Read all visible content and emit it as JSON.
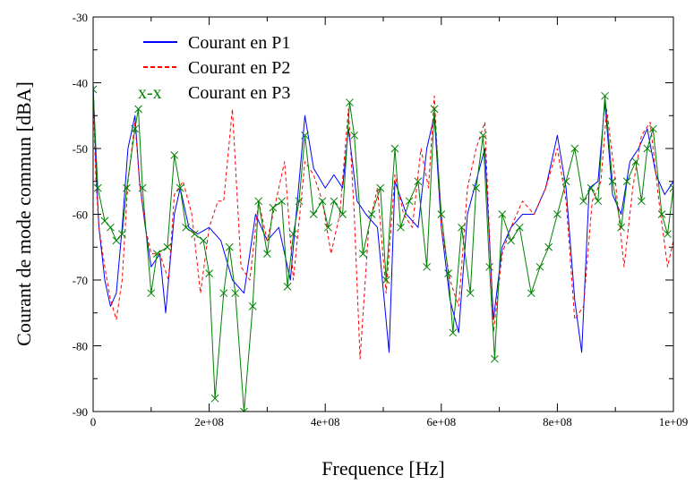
{
  "chart_data": {
    "type": "line",
    "title": "",
    "xlabel": "Frequence [Hz]",
    "ylabel": "Courant de mode commun [dBA]",
    "xlim": [
      0,
      1000000000
    ],
    "ylim": [
      -90,
      -30
    ],
    "x_ticks": [
      0,
      200000000,
      400000000,
      600000000,
      800000000,
      1000000000
    ],
    "x_tick_labels": [
      "0",
      "2e+08",
      "4e+08",
      "6e+08",
      "8e+08",
      "1e+09"
    ],
    "y_ticks": [
      -90,
      -80,
      -70,
      -60,
      -50,
      -40,
      -30
    ],
    "y_tick_labels": [
      "-90",
      "-80",
      "-70",
      "-60",
      "-50",
      "-40",
      "-30"
    ],
    "grid": false,
    "legend_position": "top-left",
    "series": [
      {
        "name": "Courant en P1",
        "legend_symbol": "",
        "color": "#0000ff",
        "style": "solid",
        "marker": "none",
        "x": [
          0,
          5000000,
          10000000,
          20000000,
          30000000,
          40000000,
          50000000,
          60000000,
          72000000,
          80000000,
          90000000,
          100000000,
          115000000,
          125000000,
          140000000,
          150000000,
          165000000,
          180000000,
          200000000,
          220000000,
          240000000,
          260000000,
          280000000,
          300000000,
          320000000,
          340000000,
          365000000,
          380000000,
          400000000,
          415000000,
          430000000,
          440000000,
          455000000,
          470000000,
          490000000,
          510000000,
          520000000,
          540000000,
          560000000,
          575000000,
          588000000,
          600000000,
          615000000,
          630000000,
          645000000,
          660000000,
          675000000,
          690000000,
          705000000,
          720000000,
          740000000,
          760000000,
          780000000,
          800000000,
          815000000,
          830000000,
          842000000,
          855000000,
          870000000,
          882000000,
          895000000,
          910000000,
          925000000,
          940000000,
          955000000,
          970000000,
          985000000,
          1000000000
        ],
        "y": [
          -40,
          -53,
          -62,
          -70,
          -74,
          -72,
          -62,
          -50,
          -45,
          -55,
          -62,
          -68,
          -66,
          -75,
          -60,
          -56,
          -62,
          -63,
          -62,
          -64,
          -70,
          -72,
          -60,
          -64,
          -62,
          -70,
          -45,
          -53,
          -56,
          -54,
          -56,
          -47,
          -58,
          -60,
          -62,
          -81,
          -55,
          -60,
          -62,
          -50,
          -45,
          -62,
          -73,
          -78,
          -60,
          -55,
          -50,
          -76,
          -65,
          -62,
          -60,
          -60,
          -56,
          -48,
          -56,
          -73,
          -81,
          -56,
          -55,
          -43,
          -57,
          -60,
          -52,
          -50,
          -47,
          -54,
          -57,
          -55
        ]
      },
      {
        "name": "Courant en P2",
        "legend_symbol": "",
        "color": "#ff0000",
        "style": "dashed",
        "marker": "none",
        "x": [
          0,
          5000000,
          10000000,
          20000000,
          30000000,
          40000000,
          50000000,
          60000000,
          72000000,
          80000000,
          90000000,
          100000000,
          115000000,
          130000000,
          140000000,
          155000000,
          170000000,
          185000000,
          200000000,
          215000000,
          225000000,
          240000000,
          255000000,
          270000000,
          285000000,
          300000000,
          315000000,
          330000000,
          345000000,
          365000000,
          380000000,
          395000000,
          410000000,
          425000000,
          440000000,
          450000000,
          460000000,
          475000000,
          490000000,
          505000000,
          520000000,
          535000000,
          550000000,
          565000000,
          578000000,
          588000000,
          600000000,
          615000000,
          630000000,
          645000000,
          660000000,
          675000000,
          690000000,
          705000000,
          720000000,
          740000000,
          760000000,
          780000000,
          800000000,
          815000000,
          830000000,
          845000000,
          860000000,
          875000000,
          885000000,
          900000000,
          915000000,
          930000000,
          945000000,
          960000000,
          975000000,
          990000000,
          1000000000
        ],
        "y": [
          -42,
          -55,
          -62,
          -68,
          -73,
          -76,
          -70,
          -55,
          -46,
          -55,
          -62,
          -66,
          -66,
          -70,
          -57,
          -55,
          -60,
          -72,
          -62,
          -58,
          -58,
          -44,
          -68,
          -70,
          -58,
          -64,
          -58,
          -52,
          -70,
          -52,
          -54,
          -58,
          -66,
          -60,
          -44,
          -60,
          -82,
          -62,
          -56,
          -72,
          -54,
          -60,
          -62,
          -50,
          -56,
          -42,
          -62,
          -70,
          -74,
          -56,
          -50,
          -46,
          -78,
          -66,
          -62,
          -58,
          -60,
          -56,
          -50,
          -58,
          -76,
          -74,
          -58,
          -55,
          -44,
          -55,
          -68,
          -56,
          -48,
          -46,
          -58,
          -68,
          -64
        ]
      },
      {
        "name": "Courant en P3",
        "legend_symbol": "x-x",
        "color": "#008000",
        "style": "solid",
        "marker": "x",
        "x": [
          0,
          8000000,
          20000000,
          30000000,
          40000000,
          50000000,
          58000000,
          72000000,
          78000000,
          85000000,
          100000000,
          110000000,
          128000000,
          140000000,
          150000000,
          160000000,
          175000000,
          190000000,
          200000000,
          210000000,
          225000000,
          235000000,
          245000000,
          260000000,
          275000000,
          285000000,
          300000000,
          310000000,
          325000000,
          335000000,
          345000000,
          355000000,
          365000000,
          380000000,
          395000000,
          405000000,
          415000000,
          430000000,
          442000000,
          450000000,
          465000000,
          480000000,
          495000000,
          505000000,
          520000000,
          530000000,
          545000000,
          560000000,
          575000000,
          588000000,
          600000000,
          612000000,
          620000000,
          635000000,
          650000000,
          660000000,
          672000000,
          683000000,
          692000000,
          705000000,
          720000000,
          735000000,
          755000000,
          770000000,
          785000000,
          800000000,
          815000000,
          830000000,
          845000000,
          858000000,
          870000000,
          882000000,
          895000000,
          910000000,
          920000000,
          935000000,
          945000000,
          955000000,
          965000000,
          980000000,
          990000000,
          1000000000
        ],
        "y": [
          -41,
          -56,
          -61,
          -62,
          -64,
          -63,
          -56,
          -47,
          -44,
          -56,
          -72,
          -66,
          -65,
          -51,
          -56,
          -62,
          -63,
          -64,
          -69,
          -88,
          -72,
          -65,
          -72,
          -90,
          -74,
          -58,
          -66,
          -59,
          -58,
          -71,
          -63,
          -58,
          -48,
          -60,
          -58,
          -62,
          -58,
          -60,
          -43,
          -48,
          -66,
          -60,
          -56,
          -70,
          -50,
          -62,
          -58,
          -55,
          -68,
          -44,
          -60,
          -69,
          -78,
          -62,
          -72,
          -56,
          -48,
          -68,
          -82,
          -60,
          -64,
          -62,
          -72,
          -68,
          -65,
          -60,
          -55,
          -50,
          -58,
          -56,
          -58,
          -42,
          -55,
          -62,
          -55,
          -52,
          -58,
          -50,
          -47,
          -60,
          -63,
          -56
        ]
      }
    ]
  }
}
